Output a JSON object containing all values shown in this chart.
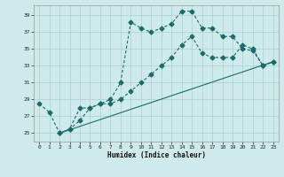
{
  "xlabel": "Humidex (Indice chaleur)",
  "background_color": "#ceeaea",
  "grid_color": "#aad0d0",
  "line_color": "#1a6b6b",
  "xlim": [
    -0.5,
    23.5
  ],
  "ylim": [
    24.0,
    40.2
  ],
  "yticks": [
    25,
    27,
    29,
    31,
    33,
    35,
    37,
    39
  ],
  "xticks": [
    0,
    1,
    2,
    3,
    4,
    5,
    6,
    7,
    8,
    9,
    10,
    11,
    12,
    13,
    14,
    15,
    16,
    17,
    18,
    19,
    20,
    21,
    22,
    23
  ],
  "line1_x": [
    0,
    1,
    2,
    3,
    4,
    5,
    6,
    7,
    8,
    9,
    10,
    11,
    12,
    13,
    14,
    15,
    16,
    17,
    18,
    19,
    20,
    21,
    22,
    23
  ],
  "line1_y": [
    28.5,
    27.5,
    25.0,
    25.5,
    28.0,
    28.0,
    28.5,
    29.0,
    31.0,
    38.2,
    37.5,
    37.0,
    37.5,
    38.0,
    39.5,
    39.5,
    37.5,
    37.5,
    36.5,
    36.5,
    35.0,
    34.8,
    33.0,
    33.5
  ],
  "line2_x": [
    2,
    3,
    4,
    5,
    6,
    7,
    8,
    9,
    10,
    11,
    12,
    13,
    14,
    15,
    16,
    17,
    18,
    19,
    20,
    21,
    22,
    23
  ],
  "line2_y": [
    25.0,
    25.5,
    26.5,
    28.0,
    28.5,
    28.5,
    29.0,
    30.0,
    31.0,
    32.0,
    33.0,
    34.0,
    35.5,
    36.5,
    34.5,
    34.0,
    34.0,
    34.0,
    35.5,
    35.0,
    33.0,
    33.5
  ],
  "line3_x": [
    2,
    23
  ],
  "line3_y": [
    25.0,
    33.5
  ]
}
